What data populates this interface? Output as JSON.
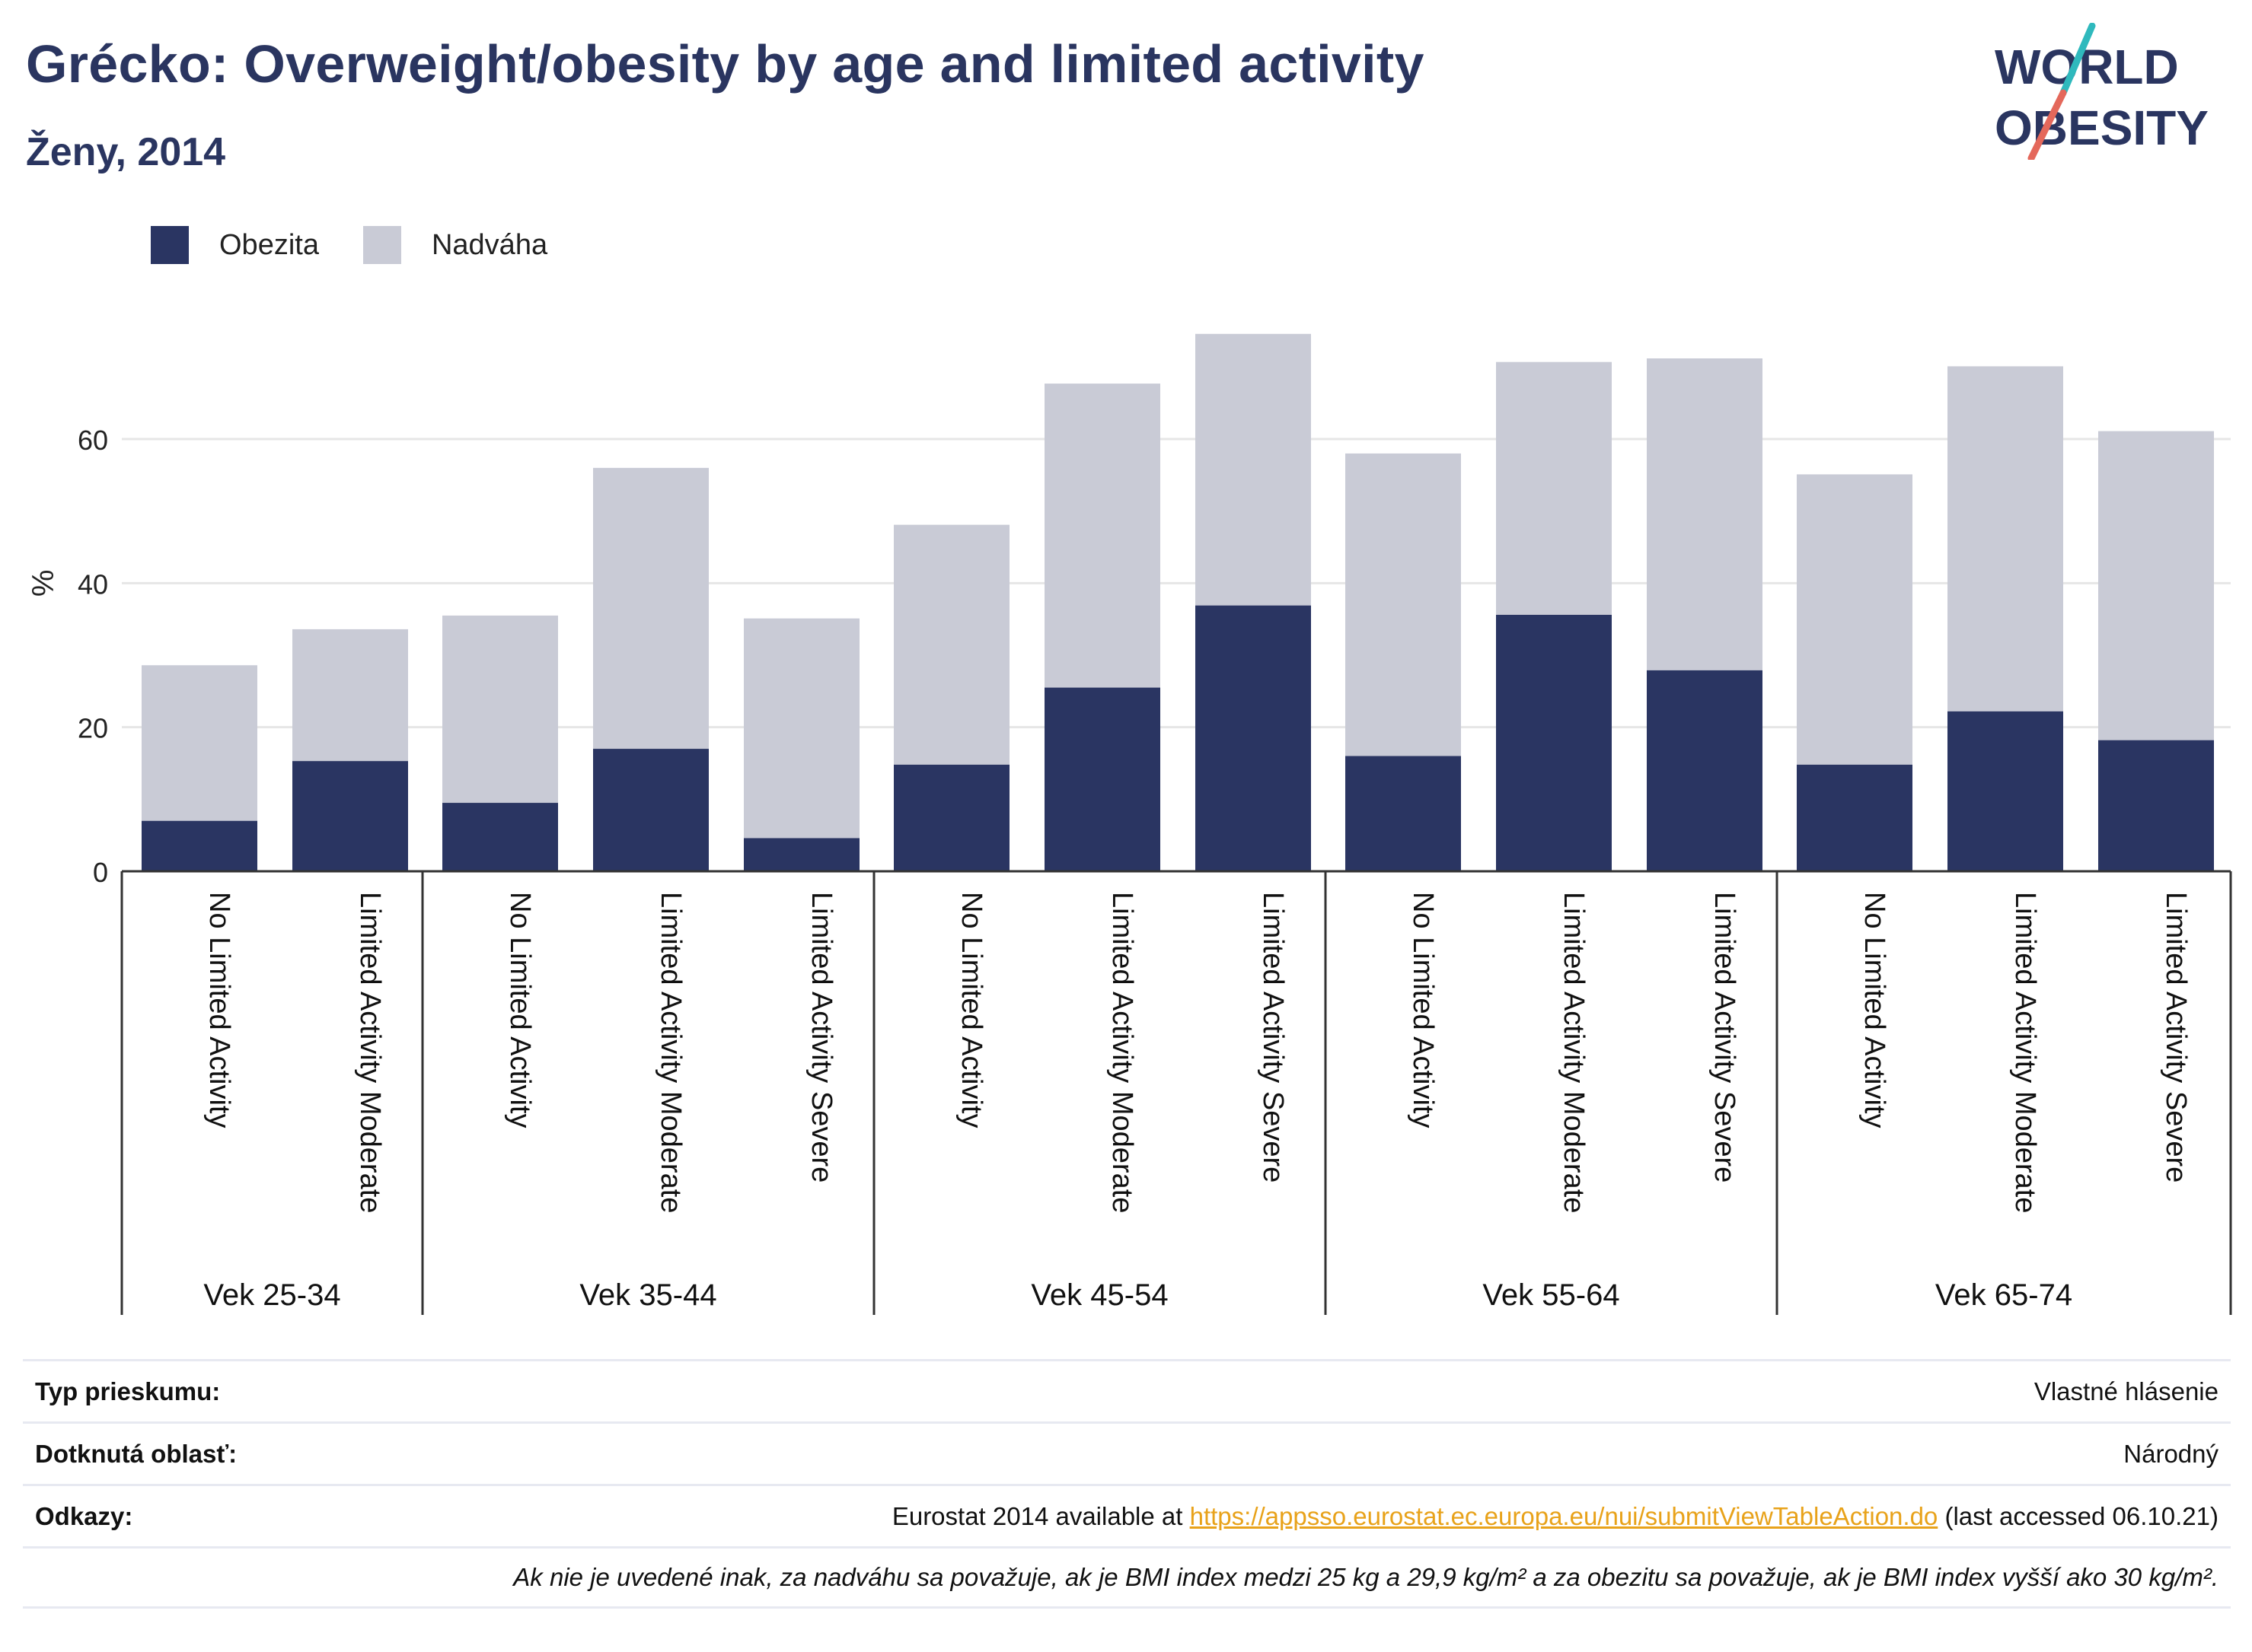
{
  "title": "Grécko: Overweight/obesity by age and limited activity",
  "subtitle": "Ženy, 2014",
  "logo": {
    "line1": "WORLD",
    "line2": "OBESITY"
  },
  "colors": {
    "obesity": "#2a3562",
    "overweight": "#c9cbd6",
    "accent_teal": "#2fb9bd",
    "accent_coral": "#e4685b",
    "axis": "#333333",
    "grid": "#e6e6e6"
  },
  "legend": [
    {
      "label": "Obezita",
      "color": "#2a3562"
    },
    {
      "label": "Nadváha",
      "color": "#c9cbd6"
    }
  ],
  "chart_data": {
    "type": "bar",
    "stacked": true,
    "ylabel": "%",
    "ylim": [
      0,
      75
    ],
    "yticks": [
      0,
      20,
      40,
      60
    ],
    "grid": true,
    "legend_position": "top-left",
    "groups": [
      {
        "label": "Vek 25-34",
        "categories": [
          "No Limited Activity",
          "Limited Activity Moderate"
        ]
      },
      {
        "label": "Vek 35-44",
        "categories": [
          "No Limited Activity",
          "Limited Activity Moderate",
          "Limited Activity Severe"
        ]
      },
      {
        "label": "Vek 45-54",
        "categories": [
          "No Limited Activity",
          "Limited Activity Moderate",
          "Limited Activity Severe"
        ]
      },
      {
        "label": "Vek 55-64",
        "categories": [
          "No Limited Activity",
          "Limited Activity Moderate",
          "Limited Activity Severe"
        ]
      },
      {
        "label": "Vek 65-74",
        "categories": [
          "No Limited Activity",
          "Limited Activity Moderate",
          "Limited Activity Severe"
        ]
      }
    ],
    "series": [
      {
        "name": "Obezita",
        "values": [
          7.0,
          15.3,
          9.5,
          17.0,
          4.6,
          14.8,
          25.5,
          36.9,
          16.0,
          35.6,
          27.9,
          14.8,
          22.2,
          18.2
        ]
      },
      {
        "name": "Nadváha",
        "values": [
          21.6,
          18.3,
          26.0,
          39.0,
          30.5,
          33.3,
          42.2,
          37.7,
          42.0,
          35.1,
          43.3,
          40.3,
          47.9,
          42.9
        ]
      }
    ]
  },
  "footer": {
    "survey_type_label": "Typ prieskumu:",
    "survey_type_value": "Vlastné hlásenie",
    "area_label": "Dotknutá oblasť:",
    "area_value": "Národný",
    "refs_label": "Odkazy:",
    "refs_prefix": "Eurostat 2014 available at",
    "refs_link": "https://appsso.eurostat.ec.europa.eu/nui/submitViewTableAction.do",
    "refs_suffix": "(last accessed 06.10.21)",
    "note": "Ak nie je uvedené inak, za nadváhu sa považuje, ak je BMI index medzi 25 kg a 29,9 kg/m² a za obezitu sa považuje, ak je BMI index vyšší ako 30 kg/m²."
  }
}
